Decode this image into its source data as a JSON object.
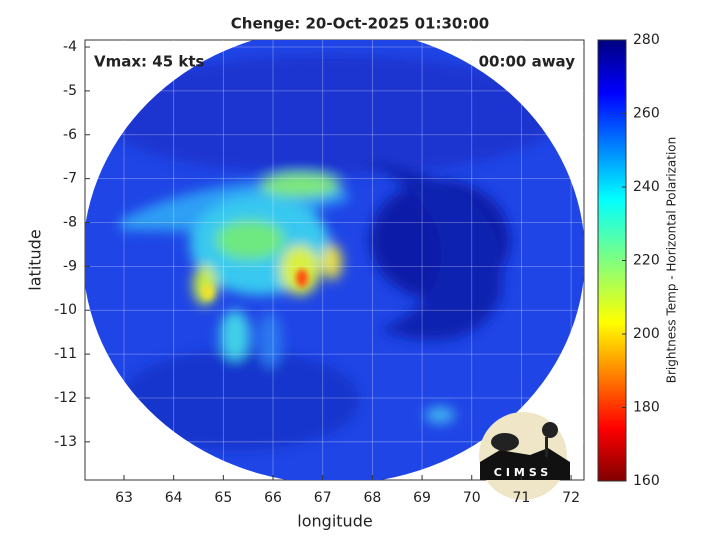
{
  "chart_data": {
    "type": "map",
    "title": "Chenge: 20-Oct-2025 01:30:00",
    "annotations": [
      "Vmax: 45 kts",
      "00:00 away"
    ],
    "xlabel": "longitude",
    "ylabel": "latitude",
    "xlim": [
      62.215,
      72.26
    ],
    "ylim": [
      -13.87,
      -3.84
    ],
    "xticks": [
      63,
      64,
      65,
      66,
      67,
      68,
      69,
      70,
      71,
      72
    ],
    "yticks": [
      -4,
      -5,
      -6,
      -7,
      -8,
      -9,
      -10,
      -11,
      -12,
      -13
    ],
    "grid": true,
    "colorbar": {
      "label": "Brightness Temp - Horizontal Polarization",
      "lim": [
        160,
        280
      ],
      "ticks": [
        160,
        180,
        200,
        220,
        240,
        260,
        280
      ]
    },
    "logo": "CIMSS"
  }
}
